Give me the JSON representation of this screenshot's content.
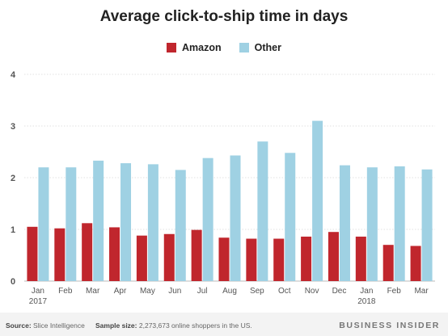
{
  "chart_data": {
    "type": "bar",
    "title": "Average click-to-ship time in days",
    "categories": [
      "Jan\n2017",
      "Feb",
      "Mar",
      "Apr",
      "May",
      "Jun",
      "Jul",
      "Aug",
      "Sep",
      "Oct",
      "Nov",
      "Dec",
      "Jan\n2018",
      "Feb",
      "Mar"
    ],
    "series": [
      {
        "name": "Amazon",
        "color": "#c0262d",
        "values": [
          1.05,
          1.02,
          1.12,
          1.04,
          0.88,
          0.91,
          0.99,
          0.84,
          0.82,
          0.82,
          0.86,
          0.95,
          0.86,
          0.7,
          0.68
        ]
      },
      {
        "name": "Other",
        "color": "#9fd1e3",
        "values": [
          2.2,
          2.2,
          2.33,
          2.28,
          2.26,
          2.15,
          2.38,
          2.43,
          2.7,
          2.48,
          3.1,
          2.24,
          2.2,
          2.22,
          2.16
        ]
      }
    ],
    "ylim": [
      0,
      4
    ],
    "yticks": [
      0,
      1,
      2,
      3,
      4
    ],
    "xlabel": "",
    "ylabel": "",
    "legend_position": "top-center",
    "grid": true
  },
  "footer": {
    "source_label": "Source:",
    "source_value": "Slice Intelligence",
    "sample_label": "Sample size:",
    "sample_value": "2,273,673 online shoppers in the US.",
    "brand": "BUSINESS INSIDER"
  }
}
